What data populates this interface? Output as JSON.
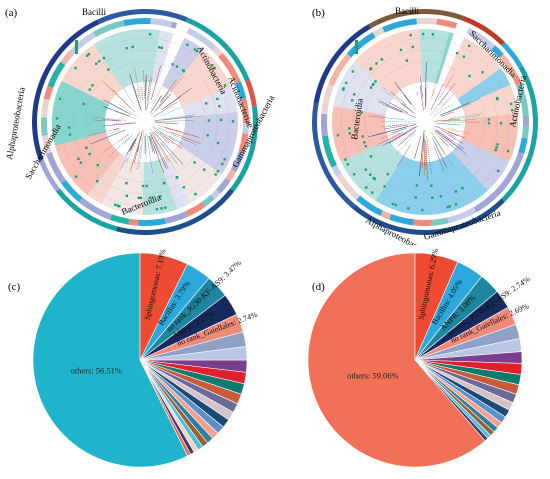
{
  "panels": {
    "a": {
      "letter": "(a)",
      "clades": [
        "Bacilli",
        "Actinobacteria",
        "Acidobacteriae",
        "Gammaproteobacteria",
        "Bacteroidia",
        "Saccharimonadia",
        "Alphaproteobacteria"
      ]
    },
    "b": {
      "letter": "(b)",
      "clades": [
        "Bacilli",
        "Saccharimonadia",
        "Actinobacteria",
        "Gammaproteobacteria",
        "Alphaproteobacteria",
        "Bacteroidia"
      ]
    },
    "c": {
      "letter": "(c)"
    },
    "d": {
      "letter": "(d)"
    }
  },
  "chart_data": [
    {
      "type": "pie",
      "panel": "c",
      "slices": [
        {
          "label": "others",
          "value": 56.51,
          "display": "others: 56.51%",
          "color": "#1fb3cc"
        },
        {
          "label": "Sphingomonas",
          "value": 7.19,
          "display": "Sphingomonas: 7.19%",
          "color": "#ef4a34"
        },
        {
          "label": "Bacillus",
          "value": 3.79,
          "display": "Bacillus: 3.79%",
          "color": "#2da8dc"
        },
        {
          "label": "no rank_JG30-KF-AS9",
          "value": 3.47,
          "display": "no rank_JG30-KF-AS9: 3.47%",
          "color": "#1d86a0"
        },
        {
          "label": "ANPR",
          "value": 3.27,
          "display": "ANPR: 3.27%",
          "color": "#172a5e"
        },
        {
          "label": "no rank_Gaiellales",
          "value": 2.74,
          "display": "no rank_Gaiellales: 2.74%",
          "color": "#f08b7a"
        },
        {
          "label": "",
          "value": 2.2,
          "color": "#8fa1c8"
        },
        {
          "label": "",
          "value": 2.0,
          "color": "#b9c7e4"
        },
        {
          "label": "",
          "value": 1.8,
          "color": "#7a3f8c"
        },
        {
          "label": "",
          "value": 1.7,
          "color": "#e11e2b"
        },
        {
          "label": "",
          "value": 1.6,
          "color": "#0b7b6e"
        },
        {
          "label": "",
          "value": 1.5,
          "color": "#c95b3a"
        },
        {
          "label": "",
          "value": 1.4,
          "color": "#6b6b9b"
        },
        {
          "label": "",
          "value": 1.3,
          "color": "#d7c1c8"
        },
        {
          "label": "",
          "value": 1.3,
          "color": "#1b4a73"
        },
        {
          "label": "",
          "value": 1.2,
          "color": "#5b8fd0"
        },
        {
          "label": "",
          "value": 1.1,
          "color": "#f4a18c"
        },
        {
          "label": "",
          "value": 1.0,
          "color": "#2e7f9e"
        },
        {
          "label": "",
          "value": 0.9,
          "color": "#9c5e37"
        },
        {
          "label": "",
          "value": 0.8,
          "color": "#4cc1d8"
        },
        {
          "label": "",
          "value": 0.7,
          "color": "#f6d1c8"
        },
        {
          "label": "",
          "value": 0.6,
          "color": "#3a3a6e"
        },
        {
          "label": "",
          "value": 0.5,
          "color": "#e86a50"
        }
      ]
    },
    {
      "type": "pie",
      "panel": "d",
      "slices": [
        {
          "label": "others",
          "value": 59.06,
          "display": "others: 59.06%",
          "color": "#f07058"
        },
        {
          "label": "Sphingomonas",
          "value": 6.29,
          "display": "Sphingomonas: 6.29%",
          "color": "#ef4a34"
        },
        {
          "label": "Bacillus",
          "value": 4.05,
          "display": "Bacillus: 4.05%",
          "color": "#2da8dc"
        },
        {
          "label": "ANPR",
          "value": 3.08,
          "display": "ANPR: 3.08%",
          "color": "#1d86a0"
        },
        {
          "label": "no rank_JG30-KF-AS9",
          "value": 2.74,
          "display": "no rank_JG30-KF-AS9: 2.74%",
          "color": "#172a5e"
        },
        {
          "label": "no rank_Gaiellales",
          "value": 2.69,
          "display": "no rank_Gaiellales: 2.69%",
          "color": "#f08b7a"
        },
        {
          "label": "",
          "value": 2.1,
          "color": "#8fa1c8"
        },
        {
          "label": "",
          "value": 1.9,
          "color": "#b9c7e4"
        },
        {
          "label": "",
          "value": 1.7,
          "color": "#7a3f8c"
        },
        {
          "label": "",
          "value": 1.6,
          "color": "#e11e2b"
        },
        {
          "label": "",
          "value": 1.5,
          "color": "#0b7b6e"
        },
        {
          "label": "",
          "value": 1.4,
          "color": "#c95b3a"
        },
        {
          "label": "",
          "value": 1.3,
          "color": "#6b6b9b"
        },
        {
          "label": "",
          "value": 1.2,
          "color": "#d7c1c8"
        },
        {
          "label": "",
          "value": 1.1,
          "color": "#1b4a73"
        },
        {
          "label": "",
          "value": 1.0,
          "color": "#5b8fd0"
        },
        {
          "label": "",
          "value": 0.9,
          "color": "#f4a18c"
        },
        {
          "label": "",
          "value": 0.8,
          "color": "#2e7f9e"
        },
        {
          "label": "",
          "value": 0.7,
          "color": "#9c5e37"
        },
        {
          "label": "",
          "value": 0.6,
          "color": "#4cc1d8"
        },
        {
          "label": "",
          "value": 0.5,
          "color": "#3a3a6e"
        }
      ]
    }
  ]
}
